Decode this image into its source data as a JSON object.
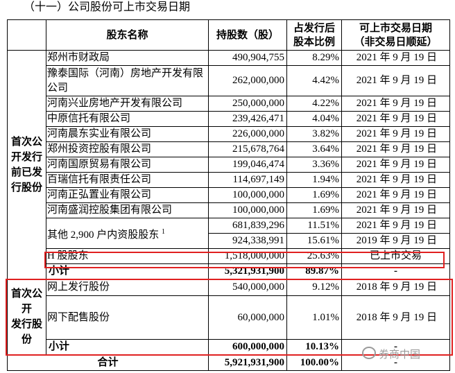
{
  "title": "（十一）公司股份可上市交易日期",
  "table": {
    "header": {
      "name": "股东名称",
      "shares": "持股数（股）",
      "ratio": [
        "占发行后",
        "股本比例"
      ],
      "date": [
        "可上市交易日期",
        "（非交易日顺延）"
      ]
    },
    "groups": [
      {
        "label": [
          "首次公",
          "开发行",
          "前已发",
          "行股份"
        ],
        "rows": [
          {
            "name": "郑州市财政局",
            "shares": "490,904,755",
            "ratio": "8.29%",
            "date": "2021 年 9 月 19 日"
          },
          {
            "name": "豫泰国际（河南）房地产开发有限公司",
            "shares": "262,000,000",
            "ratio": "4.42%",
            "date": "2021 年 9 月 19 日"
          },
          {
            "name": "河南兴业房地产开发有限公司",
            "shares": "250,000,000",
            "ratio": "4.22%",
            "date": "2021 年 9 月 19 日"
          },
          {
            "name": "中原信托有限公司",
            "shares": "239,426,471",
            "ratio": "4.04%",
            "date": "2021 年 9 月 19 日"
          },
          {
            "name": "河南晨东实业有限公司",
            "shares": "226,000,000",
            "ratio": "3.82%",
            "date": "2021 年 9 月 19 日"
          },
          {
            "name": "郑州投资控股有限公司",
            "shares": "215,678,764",
            "ratio": "3.64%",
            "date": "2021 年 9 月 19 日"
          },
          {
            "name": "河南国原贸易有限公司",
            "shares": "199,046,474",
            "ratio": "3.36%",
            "date": "2021 年 9 月 19 日"
          },
          {
            "name": "百瑞信托有限责任公司",
            "shares": "114,697,149",
            "ratio": "1.94%",
            "date": "2021 年 9 月 19 日"
          },
          {
            "name": "河南正弘置业有限公司",
            "shares": "100,000,000",
            "ratio": "1.69%",
            "date": "2021 年 9 月 19 日"
          },
          {
            "name": "河南盛润控股集团有限公司",
            "shares": "100,000,000",
            "ratio": "1.69%",
            "date": "2021 年 9 月 19 日"
          },
          {
            "name": "其他 2,900 户内资股股东",
            "footnote": "1",
            "lots": [
              {
                "shares": "681,839,296",
                "ratio": "11.51%",
                "date": "2021 年 9 月 19 日"
              },
              {
                "shares": "924,338,991",
                "ratio": "15.61%",
                "date": "2019 年 9 月 19 日"
              }
            ]
          },
          {
            "name": "H 股股东",
            "shares": "1,518,000,000",
            "ratio": "25.63%",
            "date": "已上市交易"
          }
        ],
        "subtotal": {
          "name": "小计",
          "shares": "5,321,931,900",
          "ratio": "89.87%",
          "date": "-"
        }
      },
      {
        "label": [
          "首次公",
          "开",
          "发行股",
          "份"
        ],
        "rows": [
          {
            "name": "网上发行股份",
            "shares": "540,000,000",
            "ratio": "9.12%",
            "date": "2018 年 9 月 19 日"
          },
          {
            "name": "网下配售股份",
            "shares": "60,000,000",
            "ratio": "1.01%",
            "date": "2018 年 9 月 19 日"
          }
        ],
        "subtotal": {
          "name": "小计",
          "shares": "600,000,000",
          "ratio": "10.13%",
          "date": "-"
        }
      }
    ],
    "total": {
      "name": "合计",
      "shares": "5,921,931,900",
      "ratio": "100.00%",
      "date": "-"
    }
  },
  "watermark": "券商中国"
}
